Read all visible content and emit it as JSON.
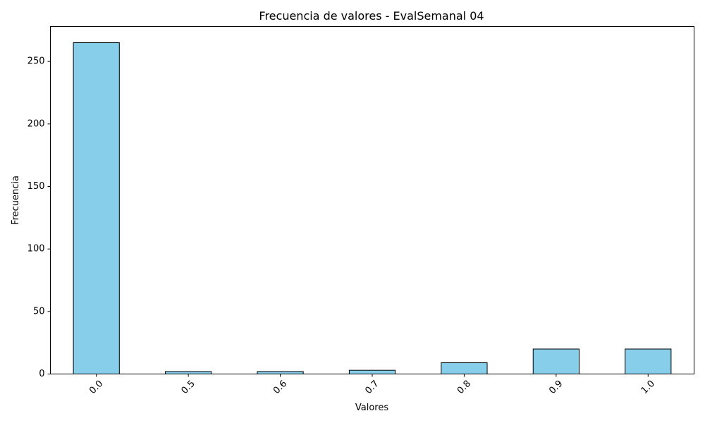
{
  "chart_data": {
    "type": "bar",
    "title": "Frecuencia de valores - EvalSemanal 04",
    "xlabel": "Valores",
    "ylabel": "Frecuencia",
    "categories": [
      "0.0",
      "0.5",
      "0.6",
      "0.7",
      "0.8",
      "0.9",
      "1.0"
    ],
    "values": [
      265,
      2,
      2,
      3,
      9,
      20,
      20
    ],
    "ylim": [
      0,
      278
    ],
    "yticks": [
      0,
      50,
      100,
      150,
      200,
      250
    ],
    "grid": false,
    "legend": "none",
    "bar_color": "#87ceeb",
    "bar_edge_color": "#000000",
    "x_tick_rotation": "45"
  }
}
